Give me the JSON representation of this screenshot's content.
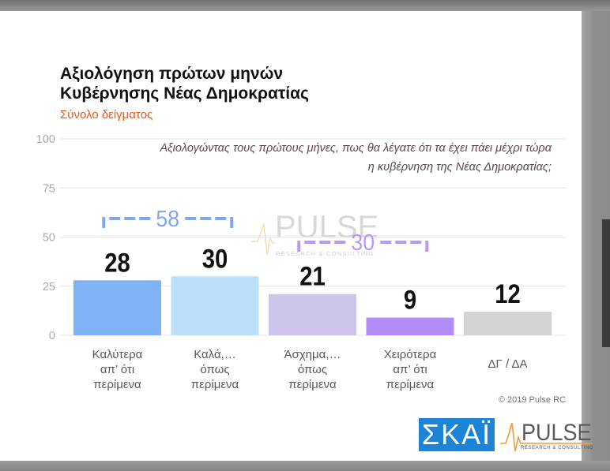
{
  "chart_data": {
    "type": "bar",
    "title": "Αξιολόγηση πρώτων μηνών\nΚυβέρνησης Νέας Δημοκρατίας",
    "subtitle": "Σύνολο δείγματος",
    "annotation": "Αξιολογώντας τους πρώτους μήνες, πως θα λέγατε ότι τα έχει πάει μέχρι τώρα\nη κυβέρνηση της Νέας Δημοκρατίας;",
    "categories": [
      "Καλύτερα\nαπ’ ότι\nπερίμενα",
      "Καλά,…\nόπως\nπερίμενα",
      "Άσχημα,…\nόπως\nπερίμενα",
      "Χειρότερα\nαπ’ ότι\nπερίμενα",
      "ΔΓ / ΔΑ"
    ],
    "values": [
      28,
      30,
      21,
      9,
      12
    ],
    "colors": [
      "#80b2f7",
      "#bddffa",
      "#cfc4ea",
      "#b28df9",
      "#d4d4d4"
    ],
    "ylim": [
      0,
      100
    ],
    "yticks": [
      0,
      25,
      50,
      75,
      100
    ],
    "grid": true,
    "group_totals": [
      {
        "value": 58,
        "categories": [
          0,
          1
        ],
        "color": "#7ea7ef"
      },
      {
        "value": 30,
        "categories": [
          2,
          3
        ],
        "color": "#b898f6"
      }
    ]
  },
  "watermark": {
    "name": "PULSE",
    "tagline": "RESEARCH & CONSULTING"
  },
  "copyright": "© 2019 Pulse RC",
  "logos": {
    "skai": {
      "text": "ΣΚΑΪ",
      "color": "#1b84d6"
    },
    "pulse": {
      "name": "PULSE",
      "tagline": "RESEARCH & CONSULTING",
      "accent": "#f29a3c"
    }
  }
}
